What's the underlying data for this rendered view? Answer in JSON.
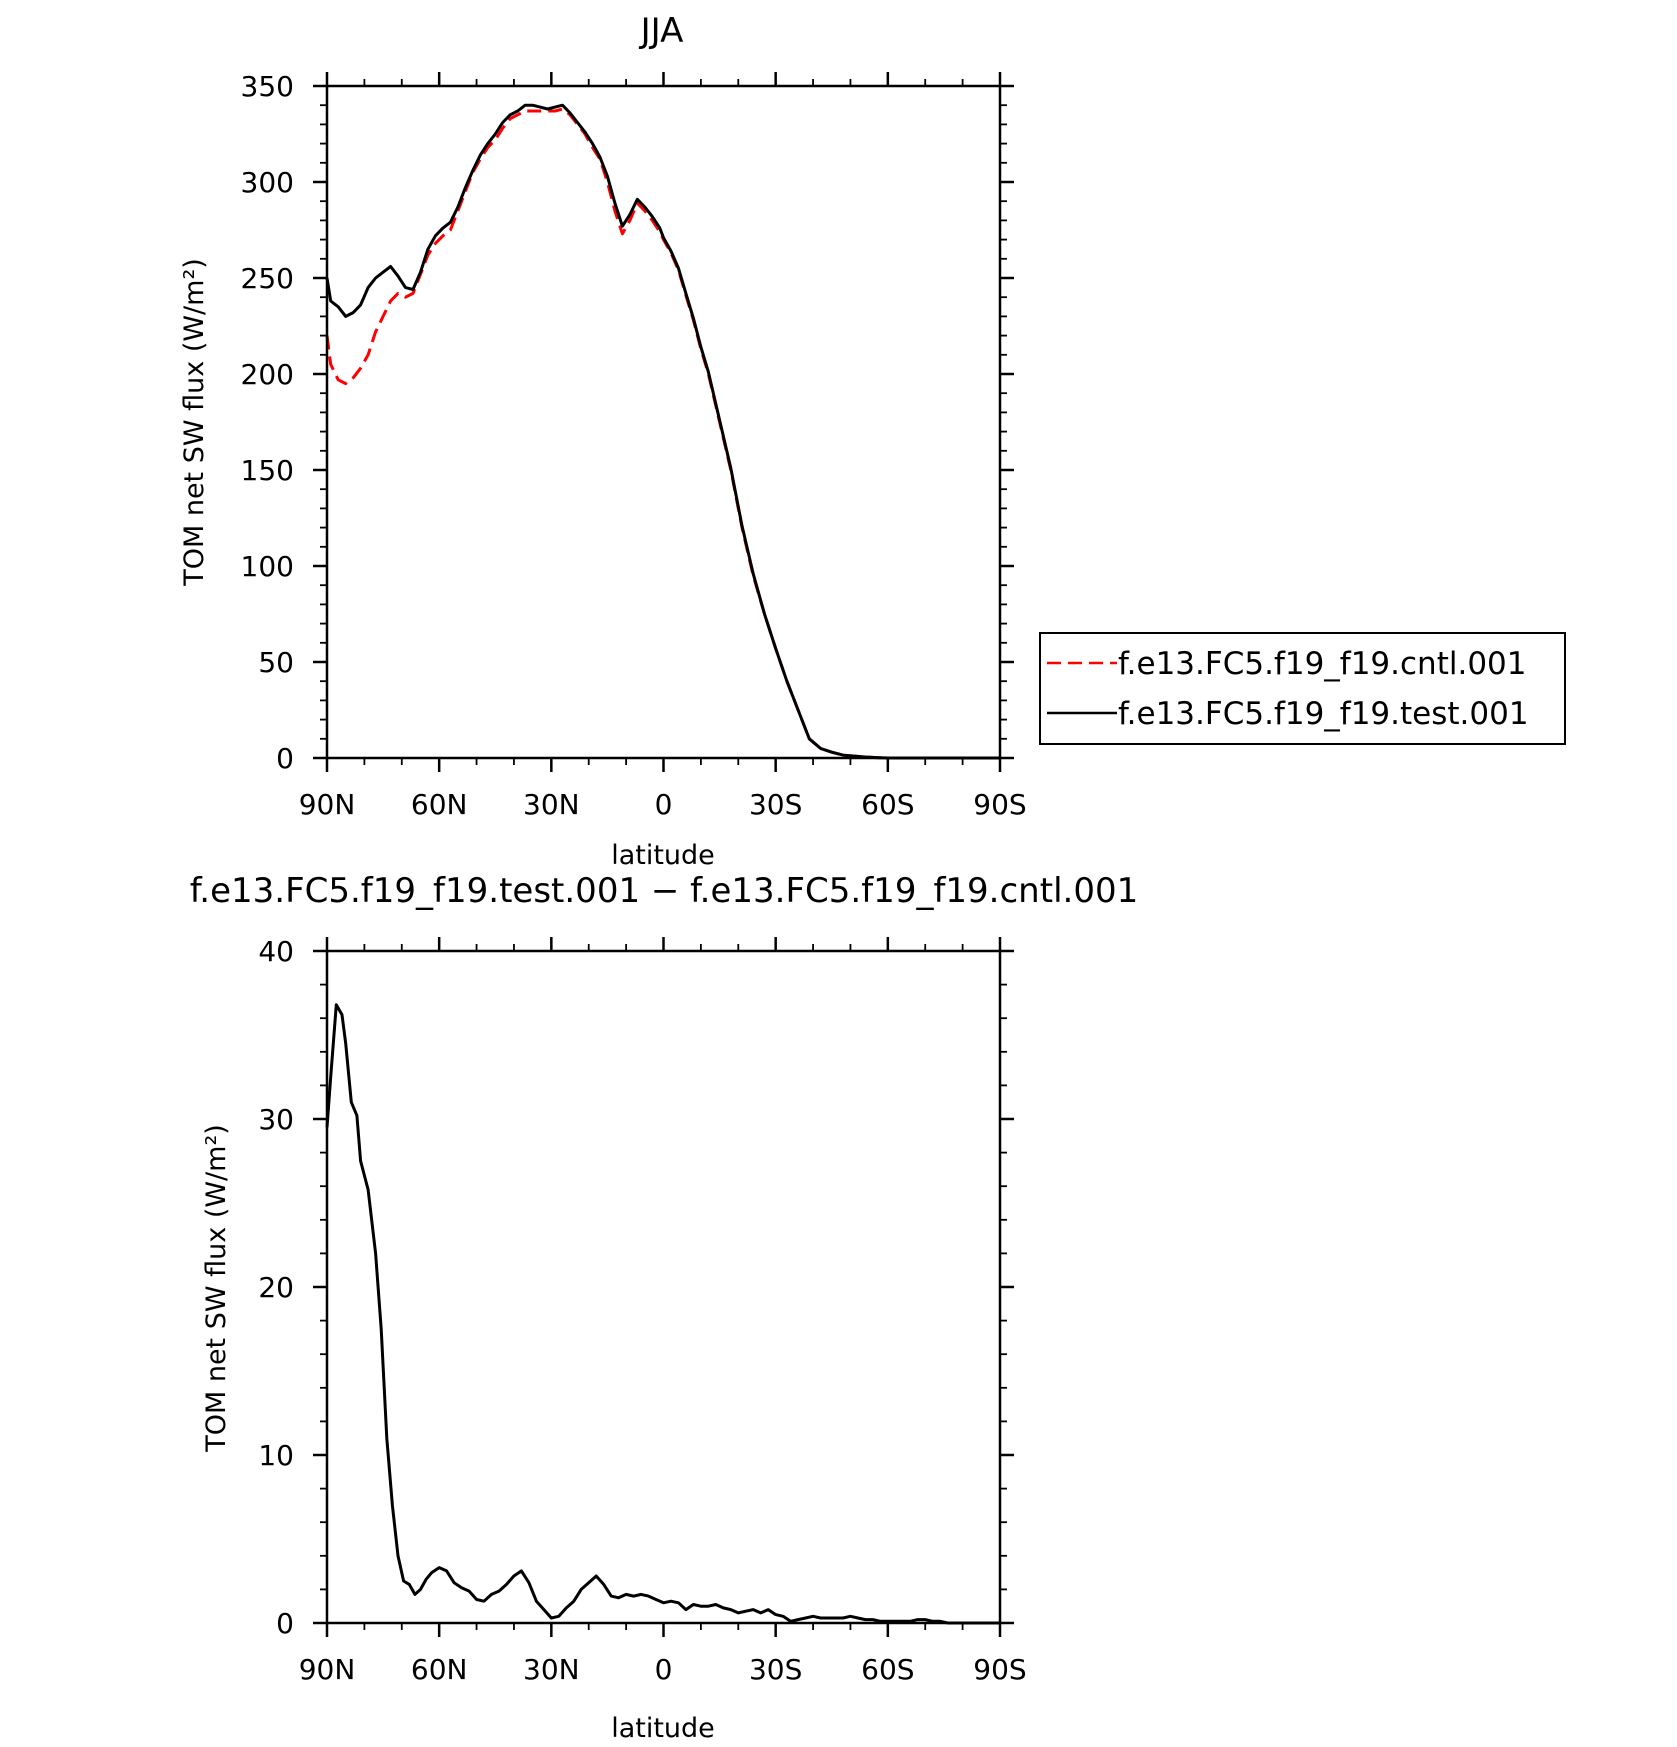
{
  "chart_data": [
    {
      "type": "line",
      "title": "JJA",
      "xlabel": "latitude",
      "ylabel": "TOM net SW flux (W/m²)",
      "x_tick_labels": [
        "90N",
        "60N",
        "30N",
        "0",
        "30S",
        "60S",
        "90S"
      ],
      "y_tick_labels": [
        "0",
        "50",
        "100",
        "150",
        "200",
        "250",
        "300",
        "350"
      ],
      "xlim": [
        90,
        -90
      ],
      "ylim": [
        0,
        350
      ],
      "legend_position": "right",
      "series": [
        {
          "name": "f.e13.FC5.f19_f19.cntl.001",
          "color": "#ff0000",
          "dash": "dashed",
          "x": [
            90,
            89,
            87,
            85,
            83,
            81,
            79,
            77,
            75,
            73,
            71,
            69,
            67,
            65,
            63,
            61,
            59,
            57,
            55,
            53,
            51,
            49,
            47,
            45,
            43,
            41,
            39,
            37,
            35,
            33,
            31,
            29,
            27,
            25,
            23,
            21,
            19,
            17,
            15,
            13,
            11,
            9,
            7,
            5,
            3,
            1,
            0,
            -2,
            -4,
            -6,
            -8,
            -10,
            -12,
            -15,
            -18,
            -21,
            -24,
            -27,
            -30,
            -33,
            -36,
            -39,
            -42,
            -45,
            -48,
            -51,
            -54,
            -57,
            -60,
            -63,
            -66,
            -69,
            -72,
            -75,
            -78,
            -81,
            -84,
            -87,
            -90
          ],
          "y": [
            220,
            205,
            197,
            195,
            198,
            203,
            210,
            222,
            230,
            238,
            242,
            240,
            242,
            252,
            262,
            268,
            272,
            275,
            285,
            295,
            305,
            312,
            318,
            322,
            328,
            333,
            335,
            337,
            337,
            337,
            337,
            337,
            338,
            335,
            330,
            325,
            318,
            312,
            300,
            285,
            273,
            280,
            289,
            285,
            280,
            274,
            270,
            263,
            254,
            241,
            228,
            213,
            200,
            175,
            150,
            120,
            95,
            75,
            57,
            40,
            25,
            10,
            5,
            3,
            1.5,
            1,
            0.5,
            0.2,
            0,
            0,
            0,
            0,
            0,
            0,
            0,
            0,
            0,
            0,
            0
          ]
        },
        {
          "name": "f.e13.FC5.f19_f19.test.001",
          "color": "#000000",
          "dash": "solid",
          "x": [
            90,
            89,
            87,
            85,
            83,
            81,
            79,
            77,
            75,
            73,
            71,
            69,
            67,
            65,
            63,
            61,
            59,
            57,
            55,
            53,
            51,
            49,
            47,
            45,
            43,
            41,
            39,
            37,
            35,
            33,
            31,
            29,
            27,
            25,
            23,
            21,
            19,
            17,
            15,
            13,
            11,
            9,
            7,
            5,
            3,
            1,
            0,
            -2,
            -4,
            -6,
            -8,
            -10,
            -12,
            -15,
            -18,
            -21,
            -24,
            -27,
            -30,
            -33,
            -36,
            -39,
            -42,
            -45,
            -48,
            -51,
            -54,
            -57,
            -60,
            -63,
            -66,
            -69,
            -72,
            -75,
            -78,
            -81,
            -84,
            -87,
            -90
          ],
          "y": [
            250,
            238,
            235,
            230,
            232,
            236,
            245,
            250,
            253,
            256,
            251,
            245,
            244,
            253,
            265,
            272,
            276,
            279,
            287,
            297,
            306,
            314,
            320,
            325,
            331,
            335,
            337,
            340,
            340,
            339,
            338,
            339,
            340,
            336,
            331,
            326,
            320,
            313,
            303,
            289,
            277,
            283,
            291,
            287,
            282,
            276,
            271,
            264,
            255,
            242,
            229,
            214,
            201,
            176,
            151,
            121,
            96,
            75,
            57,
            40,
            25,
            10,
            5,
            3,
            1.5,
            1,
            0.5,
            0.2,
            0,
            0,
            0,
            0,
            0,
            0,
            0,
            0,
            0,
            0,
            0
          ]
        }
      ]
    },
    {
      "type": "line",
      "title": "f.e13.FC5.f19_f19.test.001 − f.e13.FC5.f19_f19.cntl.001",
      "xlabel": "latitude",
      "ylabel": "TOM net SW flux (W/m²)",
      "x_tick_labels": [
        "90N",
        "60N",
        "30N",
        "0",
        "30S",
        "60S",
        "90S"
      ],
      "y_tick_labels": [
        "0",
        "10",
        "20",
        "30",
        "40"
      ],
      "xlim": [
        90,
        -90
      ],
      "ylim": [
        0,
        40
      ],
      "series": [
        {
          "color": "#000000",
          "dash": "solid",
          "x": [
            90,
            89,
            87.5,
            86,
            85,
            83.5,
            82,
            81,
            79,
            77,
            75.5,
            74,
            72.5,
            71,
            69.5,
            68,
            66.5,
            65,
            63.5,
            62,
            60,
            58,
            56,
            54,
            52,
            50,
            48,
            46,
            44,
            42,
            40,
            38,
            36,
            34,
            32,
            30,
            28,
            26,
            24,
            22,
            20,
            18,
            16,
            14,
            12,
            10,
            8,
            6,
            4,
            2,
            0,
            -2,
            -4,
            -6,
            -8,
            -10,
            -12,
            -14,
            -16,
            -18,
            -20,
            -22,
            -24,
            -26,
            -28,
            -30,
            -32,
            -34,
            -36,
            -38,
            -40,
            -42,
            -44,
            -46,
            -48,
            -50,
            -52,
            -54,
            -56,
            -58,
            -60,
            -62,
            -64,
            -66,
            -68,
            -70,
            -72,
            -74,
            -76,
            -78,
            -80,
            -82,
            -84,
            -86,
            -88,
            -90
          ],
          "y": [
            29.5,
            32.5,
            36.8,
            36.2,
            34.5,
            31,
            30.2,
            27.5,
            25.8,
            22,
            17.5,
            11,
            7,
            4,
            2.5,
            2.3,
            1.7,
            2.0,
            2.6,
            3.0,
            3.3,
            3.1,
            2.4,
            2.1,
            1.9,
            1.4,
            1.3,
            1.7,
            1.9,
            2.3,
            2.8,
            3.1,
            2.4,
            1.3,
            0.8,
            0.3,
            0.4,
            0.9,
            1.3,
            2.0,
            2.4,
            2.8,
            2.3,
            1.6,
            1.5,
            1.7,
            1.6,
            1.7,
            1.6,
            1.4,
            1.2,
            1.3,
            1.2,
            0.8,
            1.1,
            1.0,
            1.0,
            1.1,
            0.9,
            0.8,
            0.6,
            0.7,
            0.8,
            0.6,
            0.8,
            0.5,
            0.4,
            0.1,
            0.2,
            0.3,
            0.4,
            0.3,
            0.3,
            0.3,
            0.3,
            0.4,
            0.3,
            0.2,
            0.2,
            0.1,
            0.1,
            0.1,
            0.1,
            0.1,
            0.2,
            0.2,
            0.1,
            0.1,
            0.0,
            0.0,
            0.0,
            0.0,
            0.0,
            0.0,
            0.0,
            0.0
          ]
        }
      ]
    }
  ],
  "legend": {
    "items": [
      {
        "label": "f.e13.FC5.f19_f19.cntl.001",
        "color": "#ff0000",
        "dash": "dashed"
      },
      {
        "label": "f.e13.FC5.f19_f19.test.001",
        "color": "#000000",
        "dash": "solid"
      }
    ]
  }
}
